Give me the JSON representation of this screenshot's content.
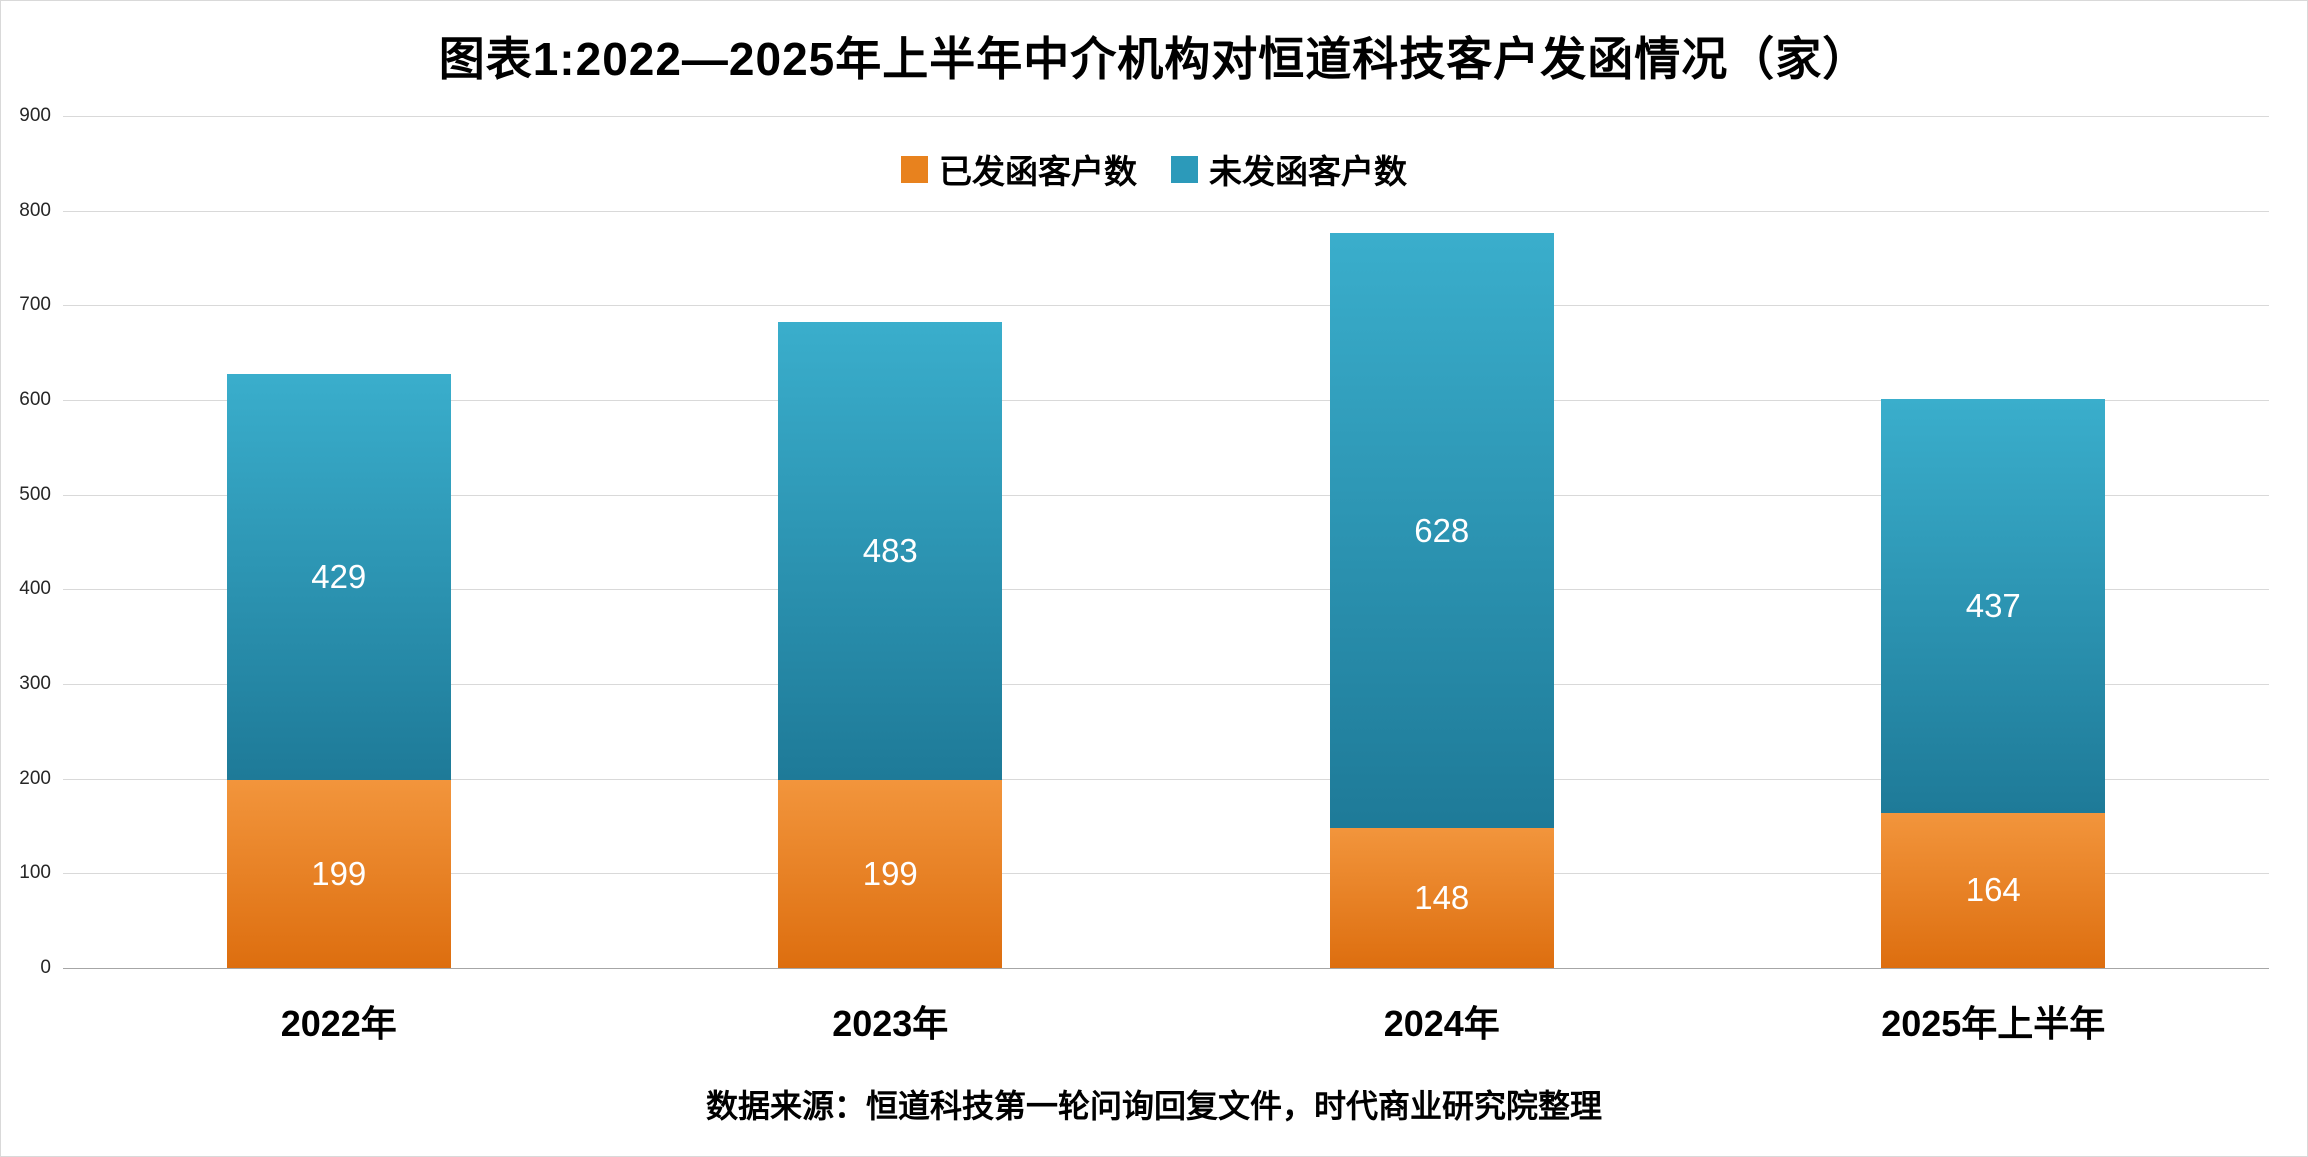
{
  "page": {
    "title": "图表1:2022—2025年上半年中介机构对恒道科技客户发函情况（家）",
    "source": "数据来源：恒道科技第一轮问询回复文件，时代商业研究院整理"
  },
  "chart_data": {
    "type": "bar",
    "stacked": true,
    "title": "图表1:2022—2025年上半年中介机构对恒道科技客户发函情况（家）",
    "categories": [
      "2022年",
      "2023年",
      "2024年",
      "2025年上半年"
    ],
    "series": [
      {
        "name": "已发函客户数",
        "values": [
          199,
          199,
          148,
          164
        ],
        "color": "#E8821E",
        "gradient_top": "#F2953C",
        "gradient_bottom": "#DD6E0F"
      },
      {
        "name": "未发函客户数",
        "values": [
          429,
          483,
          628,
          437
        ],
        "color": "#2C9ABA",
        "gradient_top": "#3AAECC",
        "gradient_bottom": "#1E7A98"
      }
    ],
    "totals": [
      628,
      682,
      776,
      601
    ],
    "ylim": [
      0,
      900
    ],
    "ytick_step": 100,
    "grid": true,
    "legend_position": "top",
    "data_labels": true,
    "gridline_color": "#d9d9d9",
    "axis_line_color": "#a6a6a6",
    "source_note": "数据来源：恒道科技第一轮问询回复文件，时代商业研究院整理"
  }
}
